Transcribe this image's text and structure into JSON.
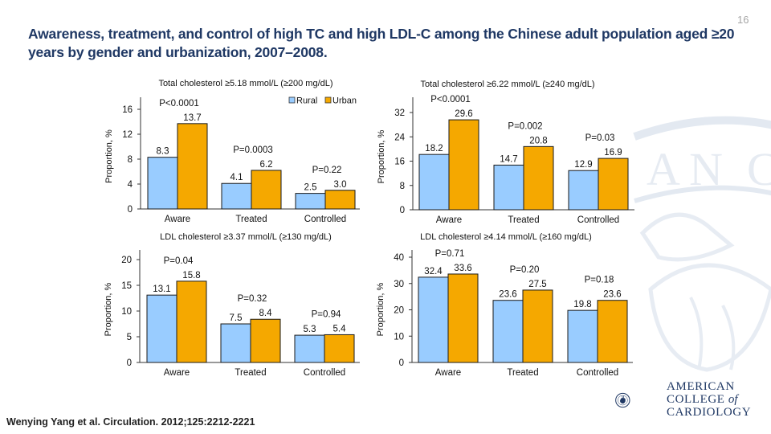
{
  "slide": {
    "title": "Awareness, treatment, and control of high TC and high LDL-C among the Chinese adult population aged ≥20 years by gender and urbanization, 2007–2008.",
    "number": "16",
    "citation": "Wenying Yang et al. Circulation. 2012;125:2212-2221",
    "logo": {
      "line1": "AMERICAN",
      "line2": "COLLEGE",
      "line2_of": "of",
      "line3": "CARDIOLOGY"
    }
  },
  "colors": {
    "title": "#1f3864",
    "rural": "#99ccff",
    "urban": "#f5a800",
    "bar_edge": "#1a1a1a"
  },
  "chart_data": [
    {
      "type": "bar",
      "title": "Total cholesterol ≥5.18 mmol/L (≥200 mg/dL)",
      "xlabel": "",
      "ylabel": "Proportion, %",
      "categories": [
        "Aware",
        "Treated",
        "Controlled"
      ],
      "series": [
        {
          "name": "Rural",
          "values": [
            8.3,
            4.1,
            2.5
          ]
        },
        {
          "name": "Urban",
          "values": [
            13.7,
            6.2,
            3.0
          ]
        }
      ],
      "value_labels": [
        [
          "8.3",
          "4.1",
          "2.5"
        ],
        [
          "13.7",
          "6.2",
          "3.0"
        ]
      ],
      "p_values": [
        "P<0.0001",
        "P=0.0003",
        "P=0.22"
      ],
      "ylim": [
        0,
        16
      ],
      "yticks": [
        0,
        4,
        8,
        12,
        16
      ],
      "legend": [
        "Rural",
        "Urban"
      ],
      "legend_position": "top-right",
      "grid": false
    },
    {
      "type": "bar",
      "title": "Total cholesterol ≥6.22 mmol/L (≥240 mg/dL)",
      "xlabel": "",
      "ylabel": "Proportion, %",
      "categories": [
        "Aware",
        "Treated",
        "Controlled"
      ],
      "series": [
        {
          "name": "Rural",
          "values": [
            18.2,
            14.7,
            12.9
          ]
        },
        {
          "name": "Urban",
          "values": [
            29.6,
            20.8,
            16.9
          ]
        }
      ],
      "value_labels": [
        [
          "18.2",
          "14.7",
          "12.9"
        ],
        [
          "29.6",
          "20.8",
          "16.9"
        ]
      ],
      "p_values": [
        "P<0.0001",
        "P=0.002",
        "P=0.03"
      ],
      "ylim": [
        0,
        32
      ],
      "yticks": [
        0,
        8,
        16,
        24,
        32
      ],
      "grid": false
    },
    {
      "type": "bar",
      "title": "LDL cholesterol ≥3.37 mmol/L (≥130 mg/dL)",
      "xlabel": "",
      "ylabel": "Proportion, %",
      "categories": [
        "Aware",
        "Treated",
        "Controlled"
      ],
      "series": [
        {
          "name": "Rural",
          "values": [
            13.1,
            7.5,
            5.3
          ]
        },
        {
          "name": "Urban",
          "values": [
            15.8,
            8.4,
            5.4
          ]
        }
      ],
      "value_labels": [
        [
          "13.1",
          "7.5",
          "5.3"
        ],
        [
          "15.8",
          "8.4",
          "5.4"
        ]
      ],
      "p_values": [
        "P=0.04",
        "P=0.32",
        "P=0.94"
      ],
      "ylim": [
        0,
        20
      ],
      "yticks": [
        0,
        5,
        10,
        15,
        20
      ],
      "grid": false
    },
    {
      "type": "bar",
      "title": "LDL cholesterol ≥4.14 mmol/L (≥160 mg/dL)",
      "xlabel": "",
      "ylabel": "Proportion, %",
      "categories": [
        "Aware",
        "Treated",
        "Controlled"
      ],
      "series": [
        {
          "name": "Rural",
          "values": [
            32.4,
            23.6,
            19.8
          ]
        },
        {
          "name": "Urban",
          "values": [
            33.6,
            27.5,
            23.6
          ]
        }
      ],
      "value_labels": [
        [
          "32.4",
          "23.6",
          "19.8"
        ],
        [
          "33.6",
          "27.5",
          "23.6"
        ]
      ],
      "p_values": [
        "P=0.71",
        "P=0.20",
        "P=0.18"
      ],
      "ylim": [
        0,
        40
      ],
      "yticks": [
        0,
        10,
        20,
        30,
        40
      ],
      "grid": false
    }
  ]
}
